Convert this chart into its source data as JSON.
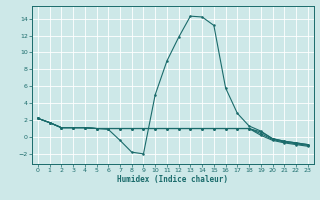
{
  "xlabel": "Humidex (Indice chaleur)",
  "background_color": "#cde8e8",
  "grid_color": "#ffffff",
  "line_color": "#1a6b6b",
  "xlim": [
    -0.5,
    23.5
  ],
  "ylim": [
    -3.2,
    15.5
  ],
  "xticks": [
    0,
    1,
    2,
    3,
    4,
    5,
    6,
    7,
    8,
    9,
    10,
    11,
    12,
    13,
    14,
    15,
    16,
    17,
    18,
    19,
    20,
    21,
    22,
    23
  ],
  "yticks": [
    -2,
    0,
    2,
    4,
    6,
    8,
    10,
    12,
    14
  ],
  "line1_x": [
    0,
    1,
    2,
    3,
    4,
    5,
    6,
    7,
    8,
    9,
    10,
    11,
    12,
    13,
    14,
    15,
    16,
    17,
    18,
    19,
    20,
    21,
    22,
    23
  ],
  "line1_y": [
    2.2,
    1.7,
    1.1,
    1.1,
    1.1,
    1.0,
    0.9,
    -0.4,
    -1.8,
    -2.0,
    5.0,
    9.0,
    11.8,
    14.3,
    14.2,
    13.2,
    5.8,
    2.8,
    1.3,
    0.7,
    -0.2,
    -0.5,
    -0.7,
    -0.9
  ],
  "line2_x": [
    0,
    1,
    2,
    3,
    4,
    5,
    6,
    7,
    8,
    9,
    10,
    11,
    12,
    13,
    14,
    15,
    16,
    17,
    18,
    19,
    20,
    21,
    22,
    23
  ],
  "line2_y": [
    2.2,
    1.7,
    1.1,
    1.1,
    1.1,
    1.0,
    1.0,
    1.0,
    1.0,
    1.0,
    1.0,
    1.0,
    1.0,
    1.0,
    1.0,
    1.0,
    1.0,
    1.0,
    1.0,
    0.6,
    -0.2,
    -0.5,
    -0.7,
    -0.9
  ],
  "line3_x": [
    0,
    1,
    2,
    3,
    4,
    5,
    6,
    7,
    8,
    9,
    10,
    11,
    12,
    13,
    14,
    15,
    16,
    17,
    18,
    19,
    20,
    21,
    22,
    23
  ],
  "line3_y": [
    2.2,
    1.7,
    1.1,
    1.1,
    1.1,
    1.0,
    1.0,
    1.0,
    1.0,
    1.0,
    1.0,
    1.0,
    1.0,
    1.0,
    1.0,
    1.0,
    1.0,
    1.0,
    1.0,
    0.4,
    -0.3,
    -0.6,
    -0.8,
    -1.0
  ],
  "line4_x": [
    0,
    1,
    2,
    3,
    4,
    5,
    6,
    7,
    8,
    9,
    10,
    11,
    12,
    13,
    14,
    15,
    16,
    17,
    18,
    19,
    20,
    21,
    22,
    23
  ],
  "line4_y": [
    2.2,
    1.7,
    1.1,
    1.1,
    1.1,
    1.0,
    1.0,
    1.0,
    1.0,
    1.0,
    1.0,
    1.0,
    1.0,
    1.0,
    1.0,
    1.0,
    1.0,
    1.0,
    1.0,
    0.2,
    -0.4,
    -0.7,
    -0.9,
    -1.1
  ]
}
